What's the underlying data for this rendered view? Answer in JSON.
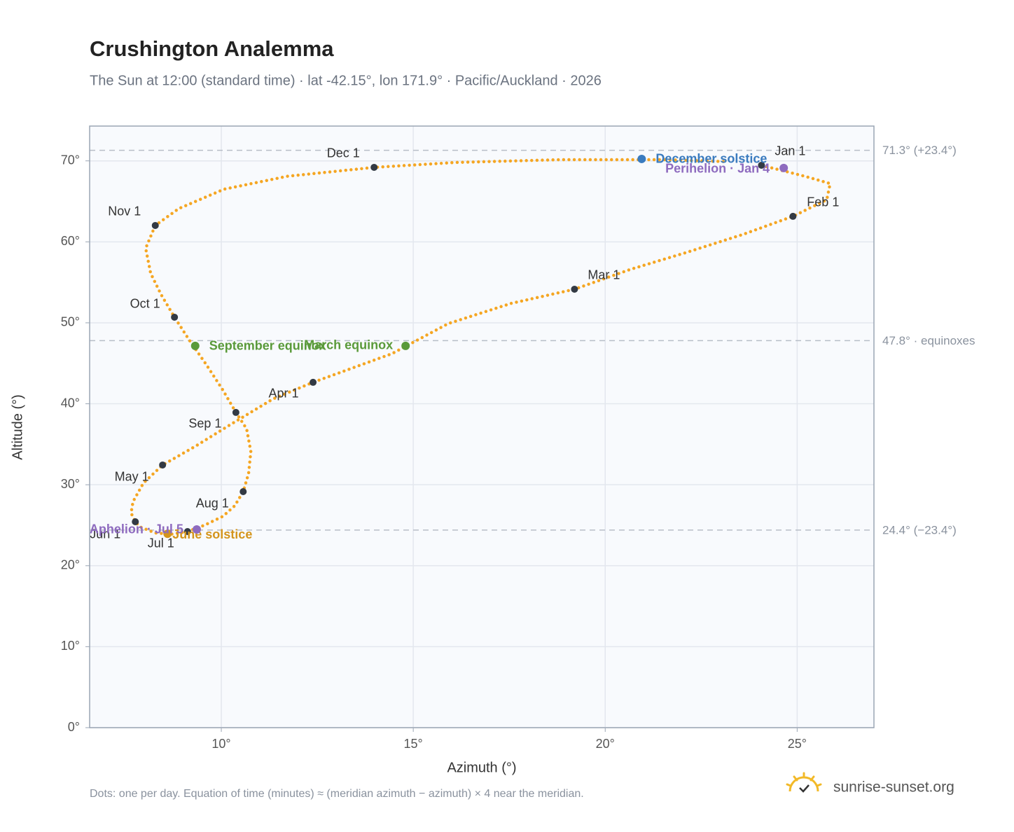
{
  "chart_data": {
    "type": "scatter",
    "title": "Crushington Analemma",
    "subtitle": "The Sun at 12:00 (standard time) · lat -42.15°, lon 171.9° · Pacific/Auckland · 2026",
    "x_label": "Azimuth (°)",
    "y_label": "Altitude (°)",
    "xlim": [
      6.57,
      27.0
    ],
    "ylim": [
      0,
      74.3
    ],
    "xticks": [
      {
        "value": 10,
        "label": "10°"
      },
      {
        "value": 15,
        "label": "15°"
      },
      {
        "value": 20,
        "label": "20°"
      },
      {
        "value": 25,
        "label": "25°"
      }
    ],
    "yticks": [
      {
        "value": 0,
        "label": "0°"
      },
      {
        "value": 10,
        "label": "10°"
      },
      {
        "value": 20,
        "label": "20°"
      },
      {
        "value": 30,
        "label": "30°"
      },
      {
        "value": 40,
        "label": "40°"
      },
      {
        "value": 50,
        "label": "50°"
      },
      {
        "value": 60,
        "label": "60°"
      },
      {
        "value": 70,
        "label": "70°"
      }
    ],
    "grid": true,
    "series": [
      {
        "color": "#f5a623",
        "x": [
          24.07,
          25.2,
          25.86,
          25.77,
          24.89,
          23.58,
          22.12,
          20.66,
          19.2,
          17.55,
          15.91,
          14.45,
          12.39,
          11.35,
          10.26,
          9.34,
          8.47,
          7.97,
          7.7,
          7.65,
          7.76,
          7.88,
          8.28,
          8.7,
          9.12,
          9.56,
          10.04,
          10.35,
          10.57,
          10.71,
          10.77,
          10.66,
          10.38,
          10.04,
          9.6,
          9.16,
          8.78,
          8.43,
          8.16,
          8.03,
          8.28,
          8.89,
          10.07,
          11.72,
          13.98,
          16.09,
          18.83,
          21.57,
          23.21
        ],
        "y": [
          69.46,
          68.1,
          67.2,
          65.2,
          63.15,
          60.9,
          58.7,
          56.6,
          54.15,
          52.4,
          49.9,
          46.2,
          42.65,
          40.6,
          37.5,
          34.8,
          32.44,
          30.2,
          27.9,
          26.5,
          25.43,
          24.8,
          24.05,
          23.9,
          24.22,
          25.0,
          26.1,
          27.4,
          29.15,
          31.4,
          34.1,
          36.9,
          38.93,
          41.7,
          44.9,
          47.9,
          50.69,
          53.5,
          56.1,
          59.2,
          62.02,
          64.1,
          66.5,
          68.1,
          69.2,
          69.8,
          70.15,
          70.15,
          69.9
        ]
      }
    ],
    "month_markers": {
      "color": "#333a44",
      "labels": [
        "Jan 1",
        "Feb 1",
        "Mar 1",
        "Apr 1",
        "May 1",
        "Jun 1",
        "Jul 1",
        "Aug 1",
        "Sep 1",
        "Oct 1",
        "Nov 1",
        "Dec 1"
      ],
      "x": [
        24.07,
        24.89,
        19.2,
        12.39,
        8.47,
        7.76,
        9.12,
        10.57,
        10.38,
        8.78,
        8.28,
        13.98
      ],
      "y": [
        69.46,
        63.15,
        54.15,
        42.65,
        32.44,
        25.43,
        24.22,
        29.15,
        38.93,
        50.69,
        62.02,
        69.2
      ]
    },
    "events": [
      {
        "label": "December solstice",
        "x": 20.95,
        "y": 70.24,
        "color": "#3a7bbf"
      },
      {
        "label": "Perihelion · Jan 4",
        "x": 24.65,
        "y": 69.12,
        "color": "#8e6bbf"
      },
      {
        "label": "March equinox",
        "x": 14.8,
        "y": 47.15,
        "color": "#5a9a3a"
      },
      {
        "label": "September equinox",
        "x": 9.32,
        "y": 47.15,
        "color": "#5a9a3a"
      },
      {
        "label": "June solstice",
        "x": 8.6,
        "y": 23.95,
        "color": "#d4951c"
      },
      {
        "label": "Aphelion · Jul 5",
        "x": 9.36,
        "y": 24.48,
        "color": "#8e6bbf"
      }
    ],
    "reference_lines": [
      {
        "value": 71.3,
        "label": "71.3° (+23.4°)"
      },
      {
        "value": 47.8,
        "label": "47.8° · equinoxes"
      },
      {
        "value": 24.4,
        "label": "24.4° (−23.4°)"
      }
    ],
    "footnote": "Dots: one per day. Equation of time (minutes) ≈ (meridian azimuth − azimuth) × 4 near the meridian.",
    "brand": "sunrise-sunset.org"
  }
}
